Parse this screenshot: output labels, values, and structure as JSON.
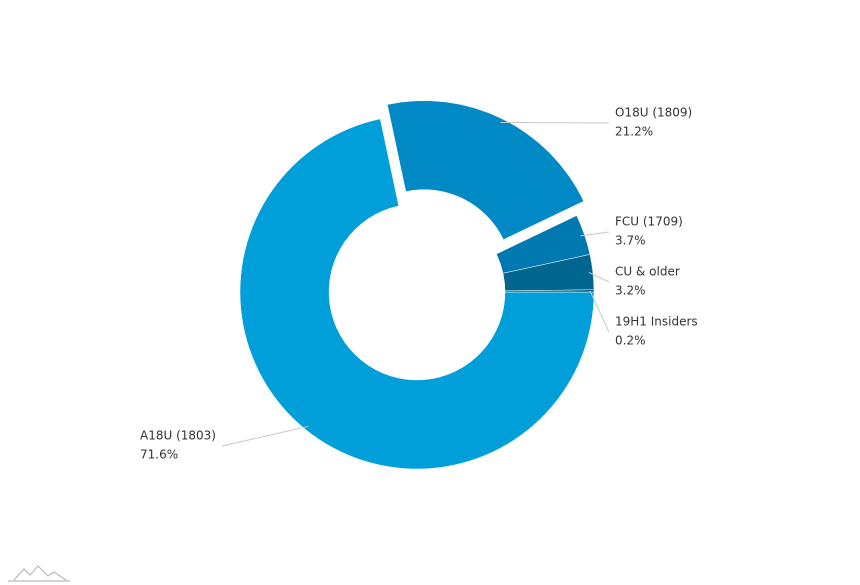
{
  "chart_data": {
    "type": "donut",
    "categories": [
      "A18U (1803)",
      "O18U (1809)",
      "FCU (1709)",
      "CU & older",
      "19H1 Insiders"
    ],
    "values": [
      71.6,
      21.2,
      3.7,
      3.2,
      0.2
    ],
    "value_labels": [
      "71.6%",
      "21.2%",
      "3.7%",
      "3.2%",
      "0.2%"
    ],
    "colors": [
      "#009fda",
      "#0089c4",
      "#0078b0",
      "#00668f",
      "#005a7c"
    ],
    "exploded_slice": 1
  }
}
